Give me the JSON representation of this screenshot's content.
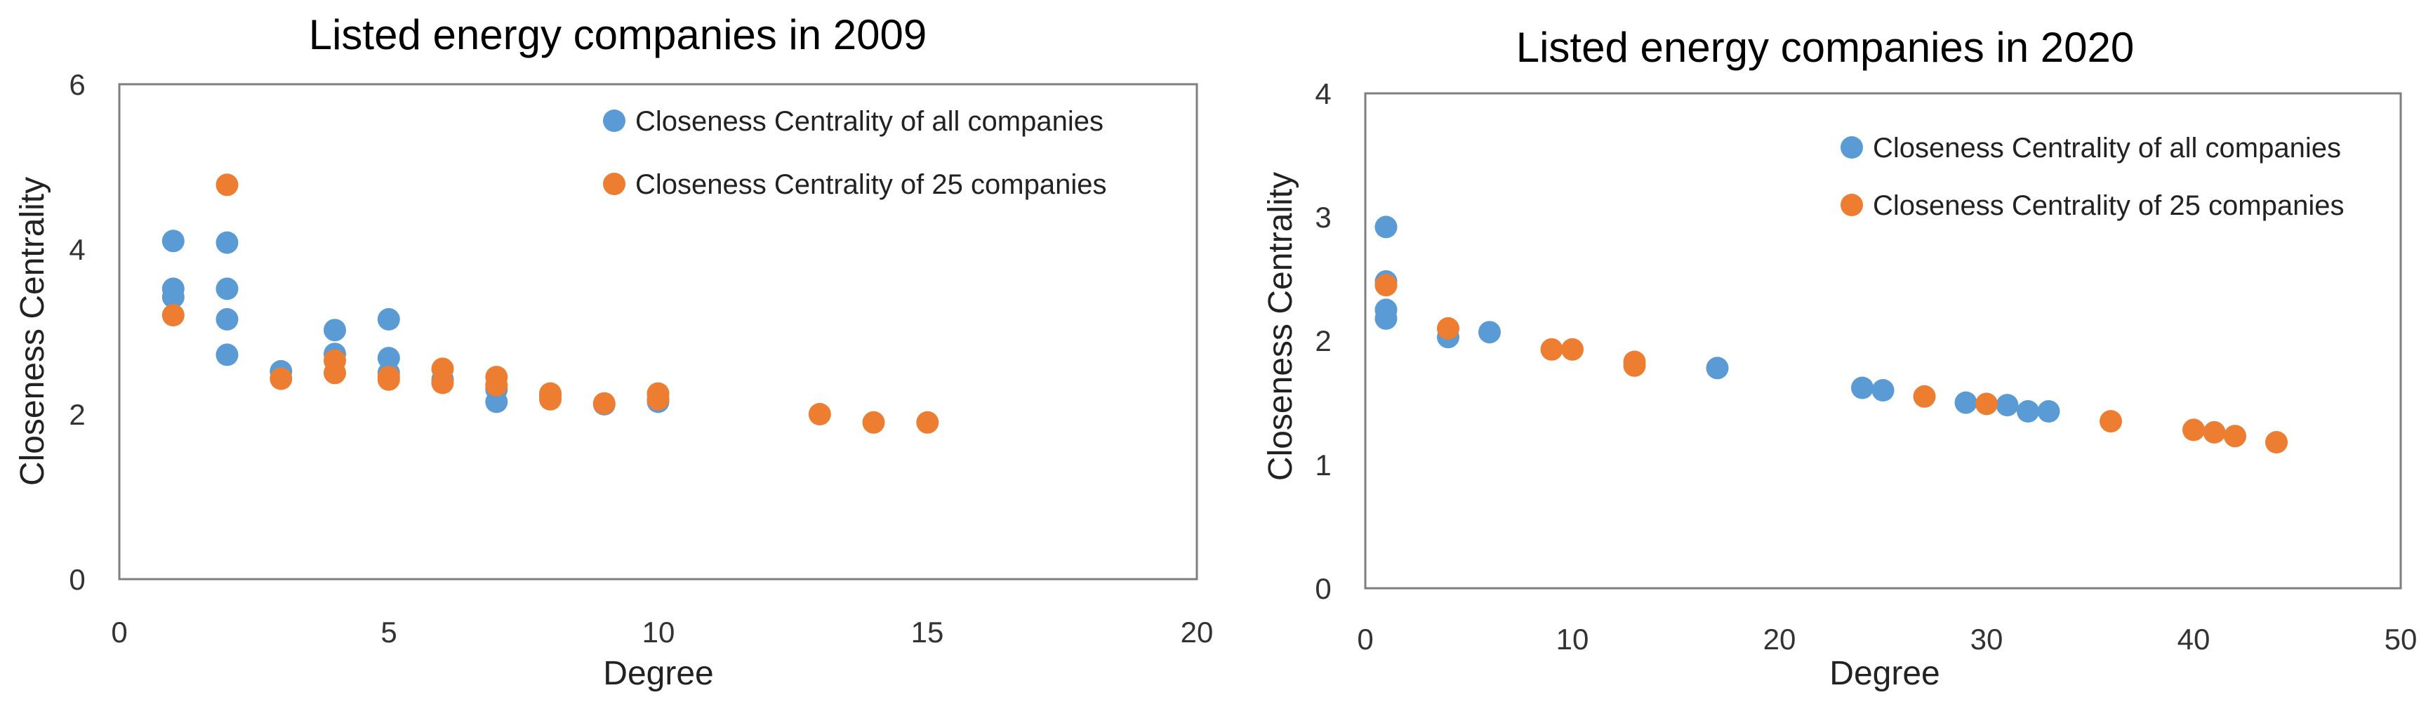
{
  "colors": {
    "all": "#5B9BD5",
    "sub": "#ED7D31",
    "frame": "#7f7f7f",
    "text": "#222222"
  },
  "chart_data": [
    {
      "type": "scatter",
      "title": "Listed energy companies in 2009",
      "xlabel": "Degree",
      "ylabel": "Closeness Centrality",
      "xlim": [
        0,
        20
      ],
      "ylim": [
        0,
        6
      ],
      "xticks": [
        0,
        5,
        10,
        15,
        20
      ],
      "yticks": [
        0,
        2,
        4,
        6
      ],
      "legend_position": "top-right",
      "series": [
        {
          "name": "Closeness Centrality of all companies",
          "color_key": "all",
          "points": [
            [
              1,
              4.1
            ],
            [
              1,
              3.52
            ],
            [
              1,
              3.42
            ],
            [
              2,
              4.08
            ],
            [
              2,
              3.52
            ],
            [
              2,
              3.15
            ],
            [
              2,
              2.72
            ],
            [
              3,
              2.52
            ],
            [
              4,
              3.02
            ],
            [
              4,
              2.73
            ],
            [
              5,
              3.15
            ],
            [
              5,
              2.68
            ],
            [
              5,
              2.5
            ],
            [
              6,
              2.42
            ],
            [
              7,
              2.3
            ],
            [
              7,
              2.15
            ],
            [
              8,
              2.22
            ],
            [
              9,
              2.12
            ],
            [
              10,
              2.15
            ]
          ]
        },
        {
          "name": "Closeness Centrality of 25 companies",
          "color_key": "sub",
          "points": [
            [
              1,
              3.2
            ],
            [
              2,
              4.78
            ],
            [
              3,
              2.43
            ],
            [
              4,
              2.65
            ],
            [
              4,
              2.5
            ],
            [
              5,
              2.45
            ],
            [
              5,
              2.42
            ],
            [
              6,
              2.55
            ],
            [
              6,
              2.38
            ],
            [
              7,
              2.45
            ],
            [
              7,
              2.35
            ],
            [
              8,
              2.25
            ],
            [
              8,
              2.18
            ],
            [
              9,
              2.13
            ],
            [
              10,
              2.25
            ],
            [
              10,
              2.18
            ],
            [
              13,
              2.0
            ],
            [
              14,
              1.9
            ],
            [
              15,
              1.9
            ]
          ]
        }
      ]
    },
    {
      "type": "scatter",
      "title": "Listed energy companies in 2020",
      "xlabel": "Degree",
      "ylabel": "Closeness Centrality",
      "xlim": [
        0,
        50
      ],
      "ylim": [
        0,
        4
      ],
      "xticks": [
        0,
        10,
        20,
        30,
        40,
        50
      ],
      "yticks": [
        0,
        1,
        2,
        3,
        4
      ],
      "legend_position": "top-right",
      "series": [
        {
          "name": "Closeness Centrality of all companies",
          "color_key": "all",
          "points": [
            [
              1,
              2.92
            ],
            [
              1,
              2.48
            ],
            [
              1,
              2.25
            ],
            [
              1,
              2.18
            ],
            [
              4,
              2.03
            ],
            [
              6,
              2.07
            ],
            [
              17,
              1.78
            ],
            [
              24,
              1.62
            ],
            [
              25,
              1.6
            ],
            [
              29,
              1.5
            ],
            [
              31,
              1.48
            ],
            [
              32,
              1.43
            ],
            [
              33,
              1.43
            ]
          ]
        },
        {
          "name": "Closeness Centrality of 25 companies",
          "color_key": "sub",
          "points": [
            [
              1,
              2.45
            ],
            [
              4,
              2.1
            ],
            [
              9,
              1.93
            ],
            [
              10,
              1.93
            ],
            [
              13,
              1.83
            ],
            [
              13,
              1.8
            ],
            [
              27,
              1.55
            ],
            [
              30,
              1.49
            ],
            [
              36,
              1.35
            ],
            [
              40,
              1.28
            ],
            [
              41,
              1.26
            ],
            [
              42,
              1.23
            ],
            [
              44,
              1.18
            ]
          ]
        }
      ]
    }
  ]
}
